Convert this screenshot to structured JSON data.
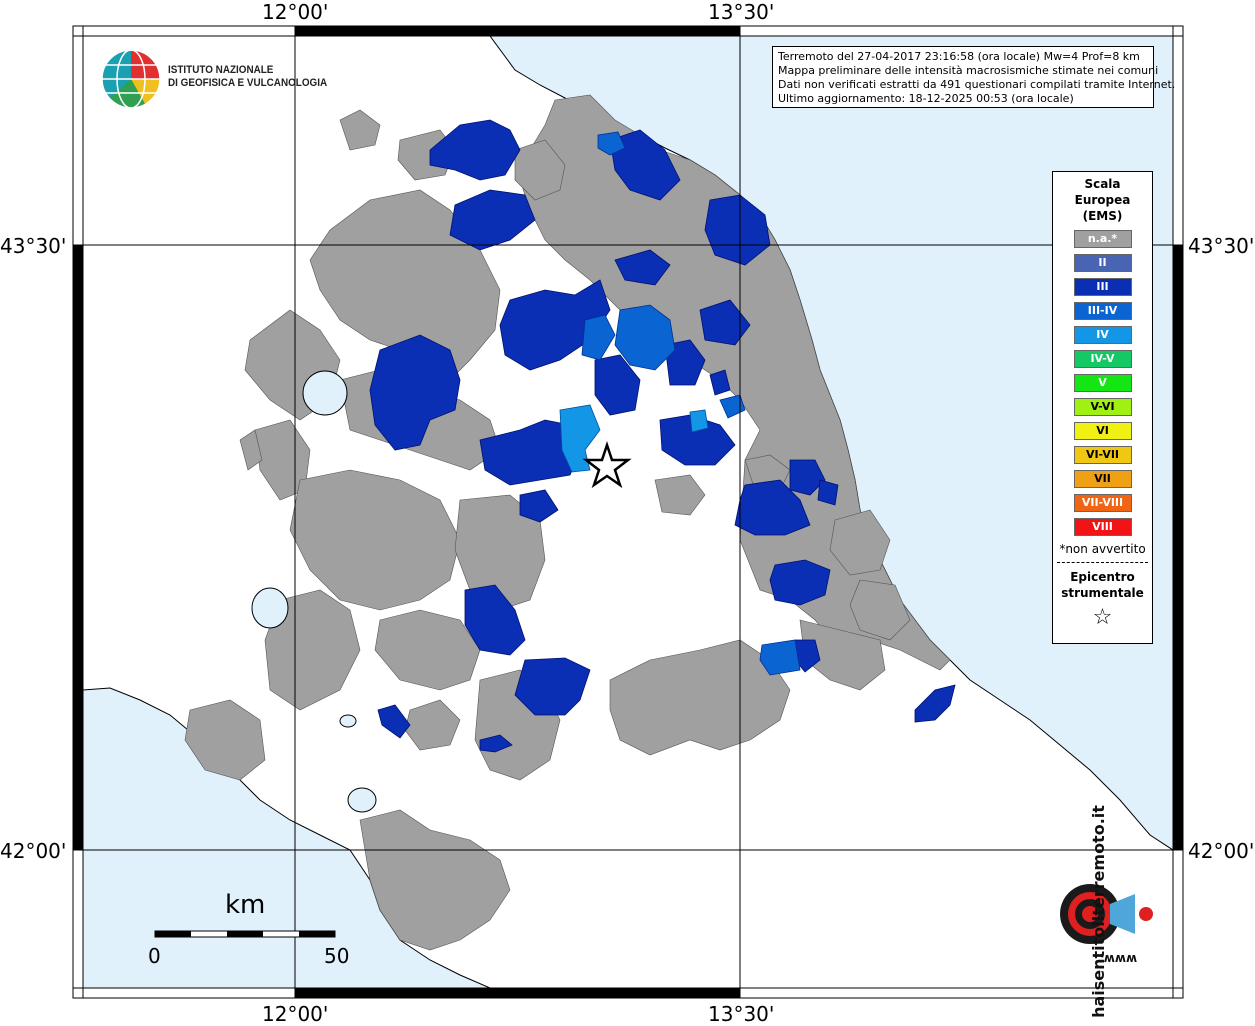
{
  "coords": {
    "top": [
      "12°00'",
      "13°30'"
    ],
    "bottom": [
      "12°00'",
      "13°30'"
    ],
    "left": [
      "43°30'",
      "42°00'"
    ],
    "right": [
      "43°30'",
      "42°00'"
    ]
  },
  "info": {
    "line1": "Terremoto del 27-04-2017 23:16:58 (ora locale) Mw=4 Prof=8 km",
    "line2": "Mappa preliminare delle intensità macrosismiche stimate nei comuni",
    "line3": "Dati non verificati estratti da 491 questionari compilati tramite Internet.",
    "line4": "Ultimo aggiornamento: 18-12-2025 00:53 (ora locale)"
  },
  "logo": {
    "line1": "ISTITUTO NAZIONALE",
    "line2": "DI GEOFISICA E VULCANOLOGIA"
  },
  "legend": {
    "title1": "Scala",
    "title2": "Europea",
    "title3": "(EMS)",
    "items": [
      {
        "label": "n.a.*",
        "color": "#a0a0a0"
      },
      {
        "label": "II",
        "color": "#4a64b4"
      },
      {
        "label": "III",
        "color": "#0a2fb4"
      },
      {
        "label": "III-IV",
        "color": "#0a64d2"
      },
      {
        "label": "IV",
        "color": "#1496e6"
      },
      {
        "label": "IV-V",
        "color": "#14c864"
      },
      {
        "label": "V",
        "color": "#14e614"
      },
      {
        "label": "V-VI",
        "color": "#a0f014"
      },
      {
        "label": "VI",
        "color": "#f0f014"
      },
      {
        "label": "VI-VII",
        "color": "#f0c814"
      },
      {
        "label": "VII",
        "color": "#f0a014"
      },
      {
        "label": "VII-VIII",
        "color": "#f06414"
      },
      {
        "label": "VIII",
        "color": "#f01414"
      }
    ],
    "note": "*non avvertito",
    "epi1": "Epicentro",
    "epi2": "strumentale",
    "epi_symbol": "☆"
  },
  "scalebar": {
    "unit": "km",
    "start": "0",
    "end": "50"
  },
  "colors": {
    "sea": "#e1f1fc",
    "lake": "#e1f1fc",
    "na": "#a0a0a0",
    "ii": "#4a64b4",
    "iii": "#0a2fb4",
    "iii_iv": "#0a64d2",
    "iv": "#1496e6"
  },
  "hsit": {
    "text": "haisentitoilterremoto.it",
    "sub": "www."
  }
}
